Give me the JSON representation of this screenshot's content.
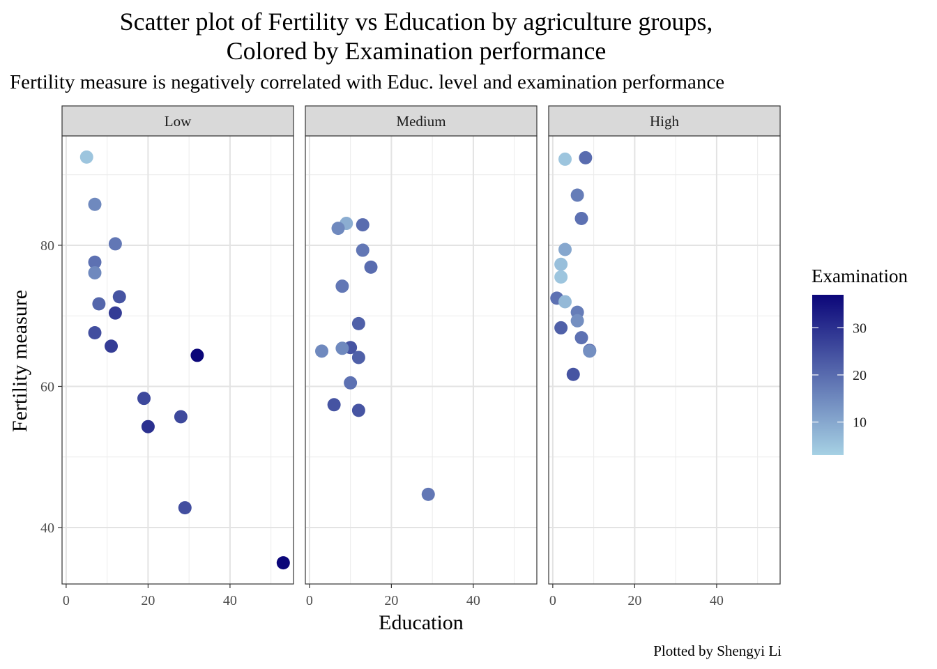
{
  "chart_data": {
    "type": "scatter",
    "title": "Scatter plot of Fertility vs Education by agriculture groups,",
    "title_line2": "Colored by Examination performance",
    "subtitle": "Fertility measure is negatively correlated with Educ. level and examination performance",
    "caption": "Plotted by Shengyi Li",
    "xlabel": "Education",
    "ylabel": "Fertility measure",
    "xlim": [
      -1,
      55.5
    ],
    "ylim": [
      32,
      95.5
    ],
    "x_ticks": [
      0,
      20,
      40
    ],
    "y_ticks": [
      40,
      60,
      80
    ],
    "grid": true,
    "facets": [
      "Low",
      "Medium",
      "High"
    ],
    "legend": {
      "title": "Examination",
      "position": "right",
      "range": [
        3,
        37
      ],
      "ticks": [
        10,
        20,
        30
      ],
      "color_low": "#a6d1e4",
      "color_high": "#0b0679"
    },
    "series": [
      {
        "facet": "Low",
        "points": [
          {
            "x": 5,
            "y": 92.5,
            "exam": 5
          },
          {
            "x": 7,
            "y": 85.8,
            "exam": 15
          },
          {
            "x": 12,
            "y": 80.2,
            "exam": 18
          },
          {
            "x": 7,
            "y": 77.6,
            "exam": 19
          },
          {
            "x": 7,
            "y": 76.1,
            "exam": 15
          },
          {
            "x": 13,
            "y": 72.7,
            "exam": 24
          },
          {
            "x": 8,
            "y": 71.7,
            "exam": 21
          },
          {
            "x": 12,
            "y": 70.4,
            "exam": 28
          },
          {
            "x": 7,
            "y": 67.6,
            "exam": 25
          },
          {
            "x": 11,
            "y": 65.7,
            "exam": 28
          },
          {
            "x": 32,
            "y": 64.4,
            "exam": 37
          },
          {
            "x": 19,
            "y": 58.3,
            "exam": 26
          },
          {
            "x": 28,
            "y": 55.7,
            "exam": 26
          },
          {
            "x": 20,
            "y": 54.3,
            "exam": 30
          },
          {
            "x": 29,
            "y": 42.8,
            "exam": 25
          },
          {
            "x": 53,
            "y": 35.0,
            "exam": 37
          }
        ]
      },
      {
        "facet": "Medium",
        "points": [
          {
            "x": 9,
            "y": 83.1,
            "exam": 9
          },
          {
            "x": 13,
            "y": 82.9,
            "exam": 20
          },
          {
            "x": 7,
            "y": 82.4,
            "exam": 15
          },
          {
            "x": 13,
            "y": 79.3,
            "exam": 18
          },
          {
            "x": 15,
            "y": 76.9,
            "exam": 20
          },
          {
            "x": 8,
            "y": 74.2,
            "exam": 18
          },
          {
            "x": 12,
            "y": 68.9,
            "exam": 22
          },
          {
            "x": 10,
            "y": 65.5,
            "exam": 24
          },
          {
            "x": 3,
            "y": 65.0,
            "exam": 15
          },
          {
            "x": 8,
            "y": 65.4,
            "exam": 15
          },
          {
            "x": 12,
            "y": 64.1,
            "exam": 22
          },
          {
            "x": 10,
            "y": 60.5,
            "exam": 19
          },
          {
            "x": 6,
            "y": 57.4,
            "exam": 24
          },
          {
            "x": 12,
            "y": 56.6,
            "exam": 24
          },
          {
            "x": 29,
            "y": 44.7,
            "exam": 18
          }
        ]
      },
      {
        "facet": "High",
        "points": [
          {
            "x": 3,
            "y": 92.2,
            "exam": 5
          },
          {
            "x": 8,
            "y": 92.4,
            "exam": 20
          },
          {
            "x": 6,
            "y": 87.1,
            "exam": 17
          },
          {
            "x": 7,
            "y": 83.8,
            "exam": 19
          },
          {
            "x": 3,
            "y": 79.4,
            "exam": 10
          },
          {
            "x": 2,
            "y": 77.3,
            "exam": 6
          },
          {
            "x": 2,
            "y": 75.5,
            "exam": 5
          },
          {
            "x": 1,
            "y": 72.5,
            "exam": 19
          },
          {
            "x": 3,
            "y": 72.0,
            "exam": 7
          },
          {
            "x": 6,
            "y": 70.5,
            "exam": 17
          },
          {
            "x": 6,
            "y": 69.3,
            "exam": 14
          },
          {
            "x": 2,
            "y": 68.3,
            "exam": 22
          },
          {
            "x": 7,
            "y": 66.9,
            "exam": 19
          },
          {
            "x": 9,
            "y": 65.1,
            "exam": 22
          },
          {
            "x": 9,
            "y": 65.0,
            "exam": 14
          },
          {
            "x": 5,
            "y": 61.7,
            "exam": 24
          }
        ]
      }
    ]
  }
}
